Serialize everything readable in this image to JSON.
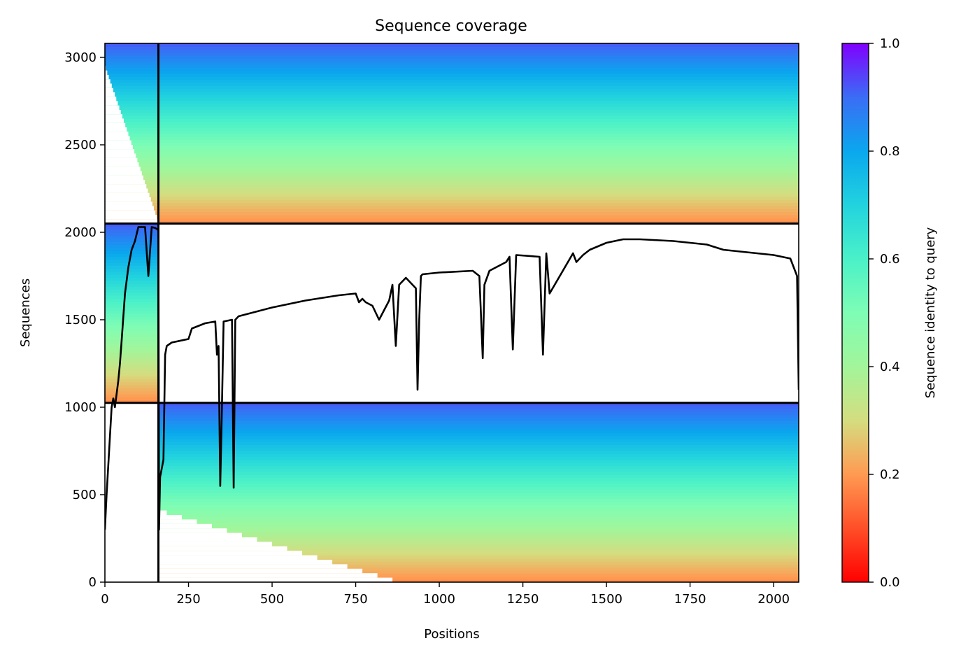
{
  "chart_data": {
    "type": "heatmap",
    "title": "Sequence coverage",
    "xlabel": "Positions",
    "ylabel": "Sequences",
    "xlim": [
      0,
      2075
    ],
    "ylim": [
      0,
      3080
    ],
    "x_ticks": [
      0,
      250,
      500,
      750,
      1000,
      1250,
      1500,
      1750,
      2000
    ],
    "y_ticks": [
      0,
      500,
      1000,
      1500,
      2000,
      2500,
      3000
    ],
    "colorbar": {
      "label": "Sequence identity to query",
      "range": [
        0.0,
        1.0
      ],
      "ticks": [
        "0.0",
        "0.2",
        "0.4",
        "0.6",
        "0.8",
        "1.0"
      ],
      "colormap": "rainbow"
    },
    "chain_boundary_x": 160,
    "block_boundaries_y": [
      1025,
      2050
    ],
    "blocks": [
      {
        "x_range": [
          0,
          2075
        ],
        "y_range": [
          0,
          1025
        ]
      },
      {
        "x_range": [
          0,
          160
        ],
        "y_range": [
          1025,
          2050
        ]
      },
      {
        "x_range": [
          0,
          2075
        ],
        "y_range": [
          2050,
          3080
        ]
      }
    ],
    "coverage_line": {
      "x": [
        0,
        5,
        20,
        25,
        30,
        40,
        45,
        50,
        60,
        70,
        80,
        90,
        100,
        110,
        120,
        130,
        140,
        150,
        155,
        160,
        162,
        165,
        175,
        180,
        185,
        200,
        250,
        260,
        300,
        330,
        335,
        340,
        345,
        350,
        355,
        380,
        385,
        390,
        400,
        500,
        600,
        700,
        750,
        760,
        770,
        780,
        800,
        820,
        850,
        860,
        870,
        880,
        900,
        930,
        935,
        940,
        945,
        950,
        1000,
        1100,
        1120,
        1130,
        1135,
        1150,
        1200,
        1210,
        1220,
        1230,
        1300,
        1310,
        1320,
        1330,
        1400,
        1410,
        1430,
        1450,
        1500,
        1550,
        1600,
        1700,
        1750,
        1800,
        1850,
        1900,
        1950,
        2000,
        2050,
        2060,
        2070,
        2075
      ],
      "y": [
        300,
        500,
        1000,
        1050,
        1000,
        1150,
        1250,
        1380,
        1650,
        1800,
        1900,
        1950,
        2030,
        2030,
        2030,
        1750,
        2030,
        2025,
        2020,
        2010,
        300,
        600,
        700,
        1300,
        1350,
        1370,
        1390,
        1450,
        1480,
        1490,
        1300,
        1350,
        550,
        1000,
        1490,
        1500,
        540,
        1500,
        1520,
        1570,
        1610,
        1640,
        1650,
        1600,
        1620,
        1600,
        1580,
        1500,
        1610,
        1700,
        1350,
        1700,
        1740,
        1680,
        1100,
        1500,
        1750,
        1760,
        1770,
        1780,
        1750,
        1280,
        1700,
        1780,
        1830,
        1860,
        1330,
        1870,
        1860,
        1300,
        1880,
        1650,
        1880,
        1830,
        1870,
        1900,
        1940,
        1960,
        1960,
        1950,
        1940,
        1930,
        1900,
        1890,
        1880,
        1870,
        1850,
        1800,
        1750,
        1100
      ]
    }
  }
}
